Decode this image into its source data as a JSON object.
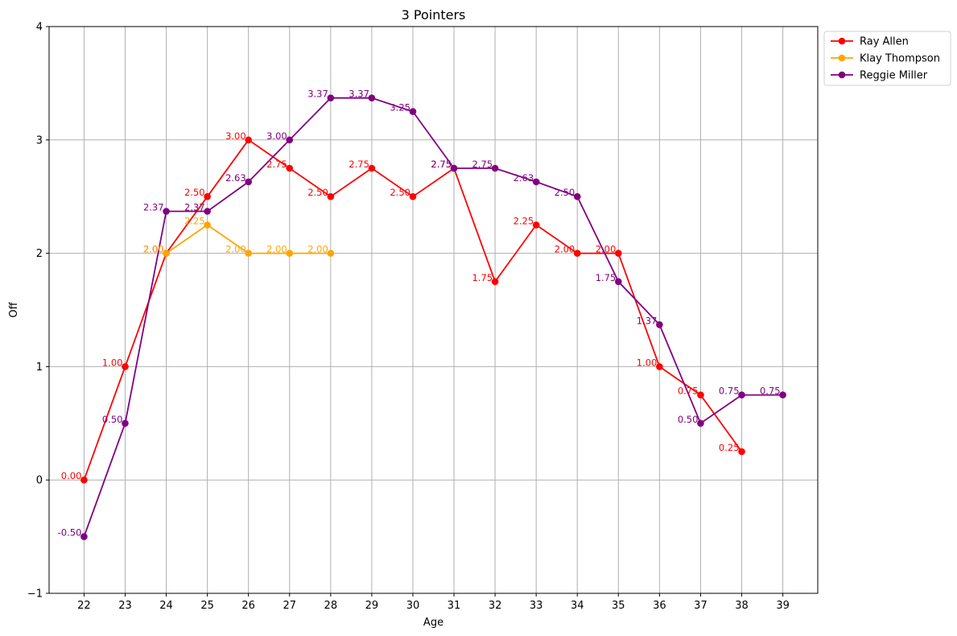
{
  "chart_data": {
    "type": "line",
    "title": "3 Pointers",
    "xlabel": "Age",
    "ylabel": "Off",
    "xlim": [
      21.15,
      39.85
    ],
    "ylim": [
      -1,
      4
    ],
    "xticks": [
      "22",
      "23",
      "24",
      "25",
      "26",
      "27",
      "28",
      "29",
      "30",
      "31",
      "32",
      "33",
      "34",
      "35",
      "36",
      "37",
      "38",
      "39"
    ],
    "yticks": [
      "−1",
      "0",
      "1",
      "2",
      "3",
      "4"
    ],
    "grid": true,
    "legend_position": "outside-top-right",
    "series": [
      {
        "name": "Ray Allen",
        "color": "#ff0000",
        "x": [
          22,
          23,
          24,
          25,
          26,
          27,
          28,
          29,
          30,
          31,
          32,
          33,
          34,
          35,
          36,
          37,
          38
        ],
        "y": [
          0.0,
          1.0,
          2.0,
          2.5,
          3.0,
          2.75,
          2.5,
          2.75,
          2.5,
          2.75,
          1.75,
          2.25,
          2.0,
          2.0,
          1.0,
          0.75,
          0.25
        ],
        "labels": [
          "0.00",
          "1.00",
          "2.00",
          "2.50",
          "3.00",
          "2.75",
          "2.50",
          "2.75",
          "2.50",
          "2.75",
          "1.75",
          "2.25",
          "2.00",
          "2.00",
          "1.00",
          "0.75",
          "0.25"
        ]
      },
      {
        "name": "Klay Thompson",
        "color": "#ffa500",
        "x": [
          24,
          25,
          26,
          27,
          28
        ],
        "y": [
          2.0,
          2.25,
          2.0,
          2.0,
          2.0
        ],
        "labels": [
          "2.00",
          "2.25",
          "2.00",
          "2.00",
          "2.00"
        ]
      },
      {
        "name": "Reggie Miller",
        "color": "#800080",
        "x": [
          22,
          23,
          24,
          25,
          26,
          27,
          28,
          29,
          30,
          31,
          32,
          33,
          34,
          35,
          36,
          37,
          38,
          39
        ],
        "y": [
          -0.5,
          0.5,
          2.37,
          2.37,
          2.63,
          3.0,
          3.37,
          3.37,
          3.25,
          2.75,
          2.75,
          2.63,
          2.5,
          1.75,
          1.37,
          0.5,
          0.75,
          0.75
        ],
        "labels": [
          "-0.50",
          "0.50",
          "2.37",
          "2.37",
          "2.63",
          "3.00",
          "3.37",
          "3.37",
          "3.25",
          "2.75",
          "2.75",
          "2.63",
          "2.50",
          "1.75",
          "1.37",
          "0.50",
          "0.75",
          "0.75"
        ]
      }
    ]
  }
}
